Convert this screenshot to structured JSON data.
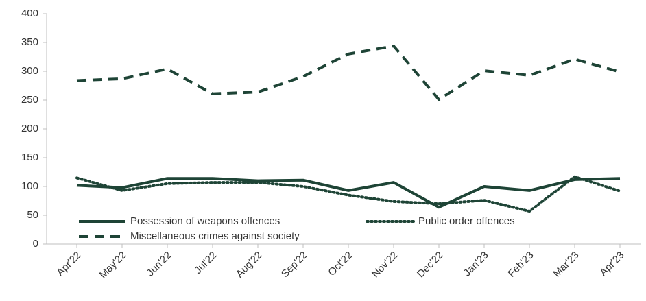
{
  "chart_data": {
    "type": "line",
    "categories": [
      "Apr'22",
      "May'22",
      "Jun'22",
      "Jul'22",
      "Aug'22",
      "Sep'22",
      "Oct'22",
      "Nov'22",
      "Dec'22",
      "Jan'23",
      "Feb'23",
      "Mar'23",
      "Apr'23"
    ],
    "series": [
      {
        "name": "Possession of weapons offences",
        "color": "#1e4436",
        "line_style": "solid",
        "values": [
          102,
          98,
          114,
          114,
          110,
          111,
          93,
          107,
          64,
          100,
          93,
          112,
          114
        ]
      },
      {
        "name": "Public order offences",
        "color": "#1e4436",
        "line_style": "dotted",
        "values": [
          115,
          93,
          105,
          107,
          107,
          100,
          85,
          74,
          70,
          76,
          57,
          117,
          92
        ]
      },
      {
        "name": "Miscellaneous crimes against society",
        "color": "#1e4436",
        "line_style": "dashed",
        "values": [
          284,
          287,
          304,
          261,
          264,
          291,
          330,
          344,
          251,
          301,
          293,
          321,
          299
        ]
      }
    ],
    "ylim": [
      0,
      400
    ],
    "yticks": [
      0,
      50,
      100,
      150,
      200,
      250,
      300,
      350,
      400
    ],
    "grid": false,
    "legend": "bottom-left"
  }
}
